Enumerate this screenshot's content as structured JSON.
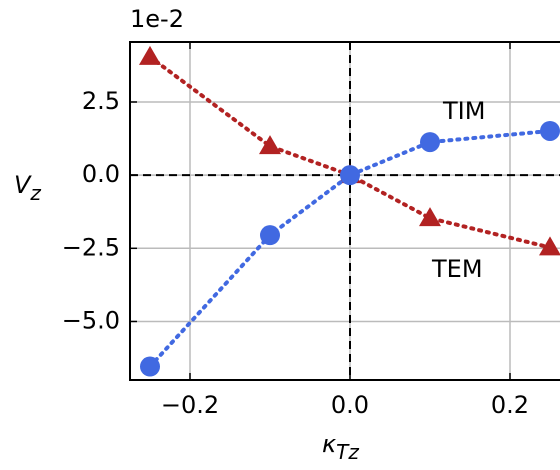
{
  "chart_data": {
    "type": "line",
    "offset_text": "1e-2",
    "ylabel": "V",
    "ylabel_sub": "z",
    "xlabel": "κ",
    "xlabel_sub": "Tz",
    "x": [
      -0.25,
      -0.1,
      0,
      0.1,
      0.25
    ],
    "series": [
      {
        "name": "TEM",
        "color": "#b22222",
        "marker": "triangle",
        "values": [
          4.04,
          0.99,
          0,
          -1.47,
          -2.47
        ]
      },
      {
        "name": "TIM",
        "color": "#4169e1",
        "marker": "circle",
        "values": [
          -6.54,
          -2.05,
          0,
          1.13,
          1.51
        ]
      }
    ],
    "xlim": [
      -0.275,
      0.2625
    ],
    "ylim": [
      -7.0,
      4.55
    ],
    "xticks": [
      {
        "value": -0.2,
        "label": "−0.2"
      },
      {
        "value": 0,
        "label": "0.0"
      },
      0.2
    ],
    "yticks": [
      2.5,
      {
        "value": 0,
        "label": "0.0"
      },
      {
        "value": -2.5,
        "label": "−2.5"
      },
      {
        "value": -5.0,
        "label": "−5.0"
      }
    ],
    "grid": true,
    "zero_lines": true,
    "line_style": "dotted"
  }
}
